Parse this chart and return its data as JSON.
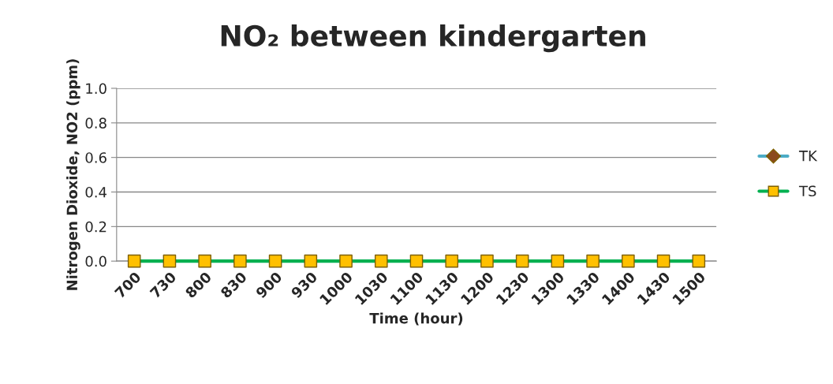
{
  "chart_data": {
    "type": "line",
    "title": "NO₂ between kindergarten",
    "xlabel": "Time (hour)",
    "ylabel": "Nitrogen Dioxide, NO2 (ppm)",
    "categories": [
      "700",
      "730",
      "800",
      "830",
      "900",
      "930",
      "1000",
      "1030",
      "1100",
      "1130",
      "1200",
      "1230",
      "1300",
      "1330",
      "1400",
      "1430",
      "1500"
    ],
    "series": [
      {
        "name": "TK",
        "color": "#4bacc6",
        "marker": "diamond",
        "colors": [
          "#8b4a1c",
          "#8b4a1c",
          "#8b4a1c",
          "#8b4a1c",
          "#8b4a1c",
          "#8b4a1c",
          "#8b4a1c",
          "#8b4a1c",
          "#8b4a1c",
          "#8b4a1c",
          "#8b4a1c",
          "#8b4a1c",
          "#8b4a1c",
          "#8b4a1c",
          "#8b4a1c",
          "#8b4a1c",
          "#8b4a1c"
        ],
        "values": [
          null,
          null,
          null,
          null,
          null,
          null,
          null,
          null,
          null,
          null,
          null,
          null,
          null,
          null,
          null,
          null,
          null
        ]
      },
      {
        "name": "TS",
        "color": "#00b050",
        "marker": "square",
        "colors": [
          "#ffc000",
          "#ffc000",
          "#ffc000",
          "#ffc000",
          "#ffc000",
          "#ffc000",
          "#ffc000",
          "#ffc000",
          "#ffc000",
          "#ffc000",
          "#ffc000",
          "#ffc000",
          "#ffc000",
          "#ffc000",
          "#ffc000",
          "#ffc000",
          "#ffc000"
        ],
        "values": [
          0,
          0,
          0,
          0,
          0,
          0,
          0,
          0,
          0,
          0,
          0,
          0,
          0,
          0,
          0,
          0,
          0
        ]
      }
    ],
    "ylim": [
      0,
      1
    ],
    "yticks": [
      {
        "value": 0,
        "label": "0.0"
      },
      {
        "value": 0.2,
        "label": "0.2"
      },
      {
        "value": 0.4,
        "label": "0.4"
      },
      {
        "value": 0.6,
        "label": "0.6"
      },
      {
        "value": 0.8,
        "label": "0.8"
      },
      {
        "value": 1,
        "label": "1.0"
      }
    ],
    "grid": "y",
    "legend": "right"
  }
}
